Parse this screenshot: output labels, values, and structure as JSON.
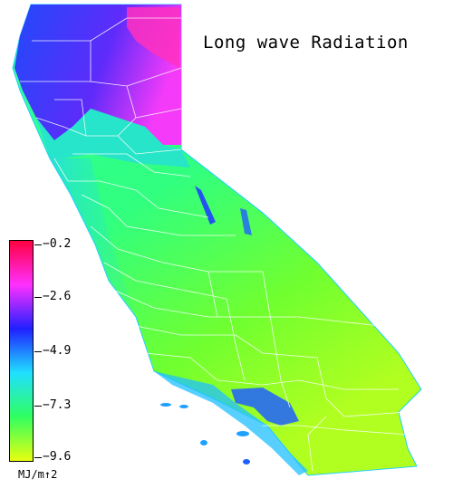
{
  "map": {
    "title": "Long wave Radiation",
    "region": "California",
    "variable": "Long wave Radiation"
  },
  "legend": {
    "units": "MJ/m↑2",
    "ticks": [
      "−0.2",
      "−2.6",
      "−4.9",
      "−7.3",
      "−9.6"
    ],
    "tick_values": [
      -0.2,
      -2.6,
      -4.9,
      -7.3,
      -9.6
    ],
    "colors": {
      "top": "#ff0040",
      "magenta": "#ff30ff",
      "blue": "#2020ff",
      "cyan": "#20e0ff",
      "green": "#30ff60",
      "yellow": "#e8ff10"
    }
  }
}
